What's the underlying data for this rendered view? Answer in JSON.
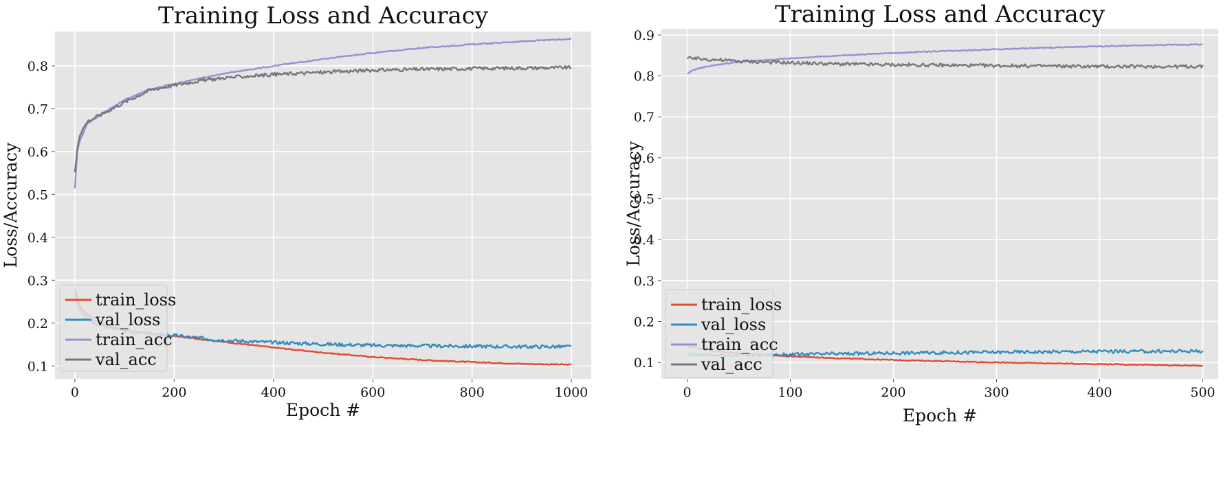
{
  "chart_data": [
    {
      "type": "line",
      "title": "Training Loss and Accuracy",
      "xlabel": "Epoch #",
      "ylabel": "Loss/Accuracy",
      "xlim": [
        -40,
        1040
      ],
      "ylim": [
        0.07,
        0.88
      ],
      "xticks": [
        0,
        200,
        400,
        600,
        800,
        1000
      ],
      "yticks": [
        0.1,
        0.2,
        0.3,
        0.4,
        0.5,
        0.6,
        0.7,
        0.8
      ],
      "grid": true,
      "legend_position": "lower-left",
      "series": [
        {
          "name": "train_loss",
          "color": "#E24A33",
          "x": [
            0,
            10,
            25,
            50,
            100,
            150,
            200,
            250,
            300,
            400,
            500,
            600,
            700,
            800,
            900,
            1000
          ],
          "y": [
            0.28,
            0.24,
            0.22,
            0.2,
            0.185,
            0.175,
            0.17,
            0.163,
            0.156,
            0.143,
            0.131,
            0.121,
            0.114,
            0.109,
            0.105,
            0.103
          ]
        },
        {
          "name": "val_loss",
          "color": "#348ABD",
          "x": [
            0,
            10,
            25,
            50,
            100,
            150,
            200,
            250,
            300,
            400,
            500,
            600,
            700,
            800,
            900,
            1000
          ],
          "y": [
            0.27,
            0.23,
            0.21,
            0.195,
            0.182,
            0.175,
            0.171,
            0.165,
            0.16,
            0.155,
            0.151,
            0.148,
            0.147,
            0.146,
            0.145,
            0.145
          ]
        },
        {
          "name": "train_acc",
          "color": "#988ED5",
          "x": [
            0,
            5,
            10,
            25,
            50,
            100,
            150,
            200,
            250,
            300,
            400,
            500,
            600,
            700,
            800,
            900,
            1000
          ],
          "y": [
            0.515,
            0.6,
            0.625,
            0.665,
            0.685,
            0.72,
            0.745,
            0.758,
            0.77,
            0.782,
            0.8,
            0.816,
            0.83,
            0.842,
            0.85,
            0.857,
            0.863
          ]
        },
        {
          "name": "val_acc",
          "color": "#777777",
          "x": [
            0,
            5,
            10,
            25,
            50,
            100,
            150,
            200,
            250,
            300,
            400,
            500,
            600,
            700,
            800,
            900,
            1000
          ],
          "y": [
            0.55,
            0.61,
            0.64,
            0.67,
            0.685,
            0.715,
            0.743,
            0.755,
            0.765,
            0.772,
            0.78,
            0.785,
            0.79,
            0.792,
            0.794,
            0.795,
            0.796
          ]
        }
      ]
    },
    {
      "type": "line",
      "title": "Training Loss and Accuracy",
      "xlabel": "Epoch #",
      "ylabel": "Loss/Accuracy",
      "xlim": [
        -25,
        515
      ],
      "ylim": [
        0.06,
        0.915
      ],
      "xticks": [
        0,
        100,
        200,
        300,
        400,
        500
      ],
      "yticks": [
        0.1,
        0.2,
        0.3,
        0.4,
        0.5,
        0.6,
        0.7,
        0.8,
        0.9
      ],
      "grid": true,
      "legend_position": "lower-left",
      "series": [
        {
          "name": "train_loss",
          "color": "#E24A33",
          "x": [
            0,
            25,
            50,
            100,
            150,
            200,
            250,
            300,
            350,
            400,
            450,
            500
          ],
          "y": [
            0.14,
            0.128,
            0.122,
            0.115,
            0.11,
            0.106,
            0.103,
            0.1,
            0.098,
            0.096,
            0.094,
            0.092
          ]
        },
        {
          "name": "val_loss",
          "color": "#348ABD",
          "x": [
            0,
            25,
            50,
            100,
            150,
            200,
            250,
            300,
            350,
            400,
            450,
            500
          ],
          "y": [
            0.12,
            0.118,
            0.118,
            0.119,
            0.121,
            0.123,
            0.124,
            0.125,
            0.126,
            0.127,
            0.127,
            0.128
          ]
        },
        {
          "name": "train_acc",
          "color": "#988ED5",
          "x": [
            0,
            5,
            10,
            25,
            50,
            100,
            150,
            200,
            250,
            300,
            350,
            400,
            450,
            500
          ],
          "y": [
            0.805,
            0.812,
            0.818,
            0.826,
            0.834,
            0.843,
            0.85,
            0.856,
            0.861,
            0.865,
            0.869,
            0.872,
            0.875,
            0.877
          ]
        },
        {
          "name": "val_acc",
          "color": "#777777",
          "x": [
            0,
            25,
            50,
            100,
            150,
            200,
            250,
            300,
            350,
            400,
            450,
            500
          ],
          "y": [
            0.843,
            0.84,
            0.836,
            0.832,
            0.829,
            0.827,
            0.826,
            0.825,
            0.824,
            0.823,
            0.823,
            0.823
          ]
        }
      ]
    }
  ]
}
